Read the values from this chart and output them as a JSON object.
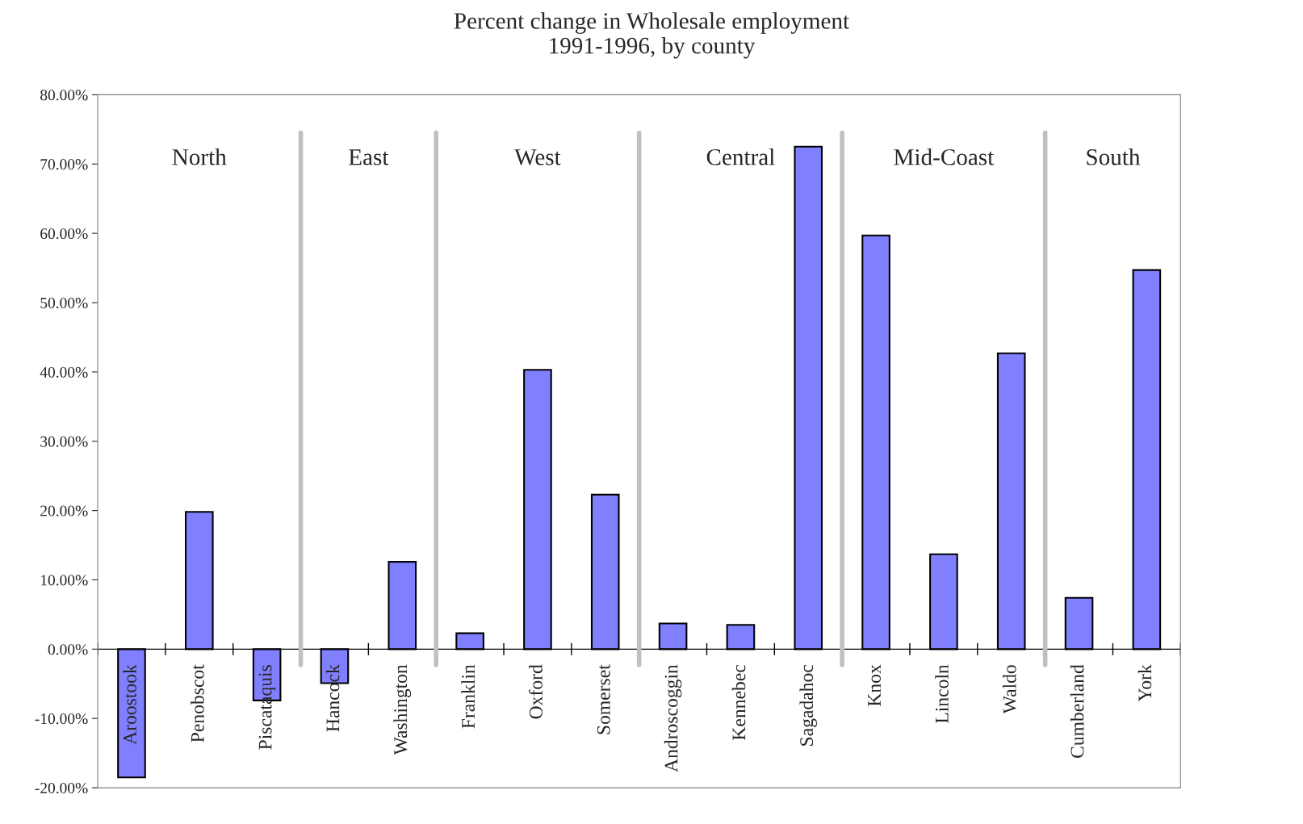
{
  "chart_data": {
    "type": "bar",
    "title": "Percent change in Wholesale employment\n1991-1996, by county",
    "categories": [
      "Aroostook",
      "Penobscot",
      "Piscataquis",
      "Hancock",
      "Washington",
      "Franklin",
      "Oxford",
      "Somerset",
      "Androscoggin",
      "Kennebec",
      "Sagadahoc",
      "Knox",
      "Lincoln",
      "Waldo",
      "Cumberland",
      "York"
    ],
    "values": [
      -18.5,
      19.8,
      -7.4,
      -4.9,
      12.6,
      2.3,
      40.3,
      22.3,
      3.7,
      3.5,
      72.5,
      59.7,
      13.7,
      42.7,
      7.4,
      54.7
    ],
    "color": "#8080ff",
    "ylim": [
      -20,
      80
    ],
    "yticks": [
      {
        "value": -20,
        "label": "-20.00%"
      },
      {
        "value": -10,
        "label": "-10.00%"
      },
      {
        "value": 0,
        "label": "0.00%"
      },
      {
        "value": 10,
        "label": "10.00%"
      },
      {
        "value": 20,
        "label": "20.00%"
      },
      {
        "value": 30,
        "label": "30.00%"
      },
      {
        "value": 40,
        "label": "40.00%"
      },
      {
        "value": 50,
        "label": "50.00%"
      },
      {
        "value": 60,
        "label": "60.00%"
      },
      {
        "value": 70,
        "label": "70.00%"
      },
      {
        "value": 80,
        "label": "80.00%"
      }
    ],
    "annotations": [
      "North",
      "East",
      "West",
      "Central",
      "Mid-Coast",
      "South"
    ],
    "grid": false
  }
}
